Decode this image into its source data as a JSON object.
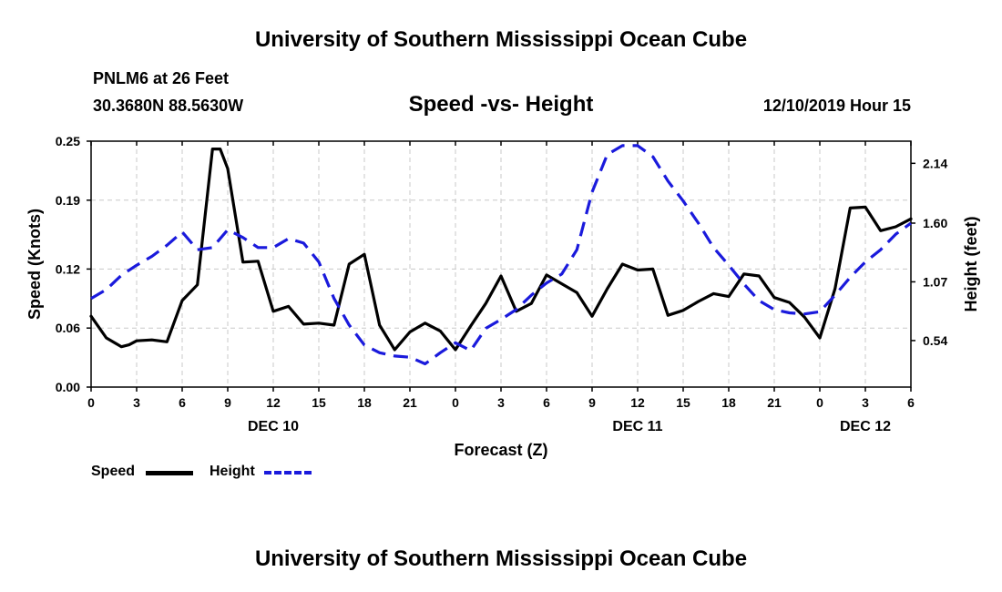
{
  "header": {
    "title": "University of Southern Mississippi Ocean Cube",
    "station": "PNLM6 at 26 Feet",
    "coordinates": "30.3680N 88.5630W",
    "subtitle": "Speed -vs- Height",
    "date_hour": "12/10/2019 Hour 15"
  },
  "footer": {
    "title": "University of Southern Mississippi Ocean Cube"
  },
  "legend": {
    "speed_label": "Speed",
    "height_label": "Height"
  },
  "colors": {
    "speed": "#000000",
    "height": "#1a1adc",
    "grid": "#c8c8c8"
  },
  "chart_data": {
    "type": "line",
    "title": "Speed -vs- Height",
    "xlabel": "Forecast (Z)",
    "ylabel_left": "Speed (Knots)",
    "ylabel_right": "Height (feet)",
    "x_unit": "hours since 2019-12-10 00Z",
    "xlim": [
      0,
      54
    ],
    "x_ticks": [
      0,
      3,
      6,
      9,
      12,
      15,
      18,
      21,
      24,
      27,
      30,
      33,
      36,
      39,
      42,
      45,
      48,
      51,
      54
    ],
    "x_tick_labels": [
      "0",
      "3",
      "6",
      "9",
      "12",
      "15",
      "18",
      "21",
      "0",
      "3",
      "6",
      "9",
      "12",
      "15",
      "18",
      "21",
      "0",
      "3",
      "6"
    ],
    "day_labels": [
      {
        "x": 12,
        "label": "DEC 10"
      },
      {
        "x": 36,
        "label": "DEC 11"
      },
      {
        "x": 51,
        "label": "DEC 12"
      }
    ],
    "ylim_left": [
      0,
      0.25
    ],
    "y_ticks_left": [
      0.0,
      0.06,
      0.12,
      0.19,
      0.25
    ],
    "y_tick_labels_left": [
      "0.00",
      "0.06",
      "0.12",
      "0.19",
      "0.25"
    ],
    "ylim_right": [
      0.12,
      2.34
    ],
    "y_ticks_right": [
      0.54,
      1.07,
      1.6,
      2.14
    ],
    "y_tick_labels_right": [
      "0.54",
      "1.07",
      "1.60",
      "2.14"
    ],
    "grid": true,
    "series": [
      {
        "name": "Speed",
        "axis": "left",
        "style": "solid",
        "x": [
          0,
          1,
          2,
          2.5,
          3,
          4,
          5,
          6,
          7,
          8,
          8.5,
          9,
          10,
          11,
          12,
          13,
          14,
          15,
          16,
          17,
          18,
          19,
          20,
          21,
          22,
          23,
          24,
          25,
          26,
          27,
          28,
          29,
          30,
          31,
          32,
          33,
          34,
          35,
          36,
          37,
          38,
          39,
          40,
          41,
          42,
          43,
          44,
          45,
          46,
          47,
          48,
          49,
          50,
          51,
          52,
          53,
          54
        ],
        "values": [
          0.072,
          0.05,
          0.041,
          0.043,
          0.047,
          0.048,
          0.046,
          0.088,
          0.104,
          0.242,
          0.242,
          0.222,
          0.127,
          0.128,
          0.077,
          0.082,
          0.064,
          0.065,
          0.063,
          0.125,
          0.135,
          0.063,
          0.038,
          0.056,
          0.065,
          0.057,
          0.038,
          0.062,
          0.085,
          0.113,
          0.077,
          0.085,
          0.114,
          0.105,
          0.096,
          0.072,
          0.1,
          0.125,
          0.119,
          0.12,
          0.073,
          0.078,
          0.087,
          0.095,
          0.092,
          0.115,
          0.113,
          0.091,
          0.086,
          0.071,
          0.05,
          0.1,
          0.182,
          0.183,
          0.159,
          0.163,
          0.171
        ]
      },
      {
        "name": "Height",
        "axis": "right",
        "style": "dashed",
        "x": [
          0,
          1,
          2,
          3,
          4,
          5,
          6,
          7,
          8,
          9,
          10,
          11,
          12,
          13,
          14,
          15,
          16,
          17,
          18,
          19,
          20,
          21,
          22,
          23,
          24,
          25,
          26,
          27,
          28,
          29,
          30,
          31,
          32,
          33,
          34,
          35,
          36,
          37,
          38,
          39,
          40,
          41,
          42,
          43,
          44,
          45,
          46,
          47,
          48,
          49,
          50,
          51,
          52,
          53,
          54
        ],
        "values": [
          0.92,
          1.0,
          1.13,
          1.22,
          1.3,
          1.4,
          1.52,
          1.36,
          1.38,
          1.54,
          1.47,
          1.38,
          1.38,
          1.46,
          1.42,
          1.25,
          0.92,
          0.68,
          0.5,
          0.43,
          0.4,
          0.39,
          0.33,
          0.43,
          0.52,
          0.45,
          0.65,
          0.73,
          0.82,
          0.95,
          1.06,
          1.14,
          1.36,
          1.88,
          2.22,
          2.3,
          2.3,
          2.2,
          1.98,
          1.8,
          1.6,
          1.38,
          1.22,
          1.05,
          0.9,
          0.82,
          0.79,
          0.78,
          0.8,
          0.95,
          1.11,
          1.25,
          1.36,
          1.5,
          1.6
        ]
      }
    ]
  }
}
